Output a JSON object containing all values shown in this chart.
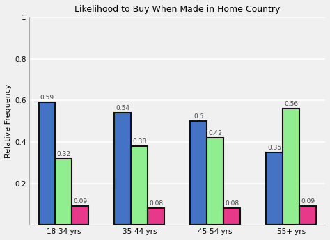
{
  "title": "Likelihood to Buy When Made in Home Country",
  "ylabel": "Relative Frequency",
  "categories": [
    "18-34 yrs",
    "35-44 yrs",
    "45-54 yrs",
    "55+ yrs"
  ],
  "series": {
    "blue": [
      0.59,
      0.54,
      0.5,
      0.35
    ],
    "green": [
      0.32,
      0.38,
      0.42,
      0.56
    ],
    "pink": [
      0.09,
      0.08,
      0.08,
      0.09
    ]
  },
  "bar_colors": [
    "#4472C4",
    "#90EE90",
    "#E8388A"
  ],
  "ylim": [
    0,
    1.0
  ],
  "yticks": [
    0.0,
    0.2,
    0.4,
    0.6,
    0.8,
    1.0
  ],
  "yticklabels": [
    "",
    "0.2",
    "0.4",
    "0.6",
    "0.8",
    "1"
  ],
  "bar_width": 0.22,
  "label_fontsize": 6.5,
  "title_fontsize": 9,
  "ylabel_fontsize": 8,
  "tick_fontsize": 7.5,
  "background_color": "#F0F0F0",
  "plot_bg_color": "#F0F0F0",
  "grid_color": "#FFFFFF",
  "edgecolor": "#111111",
  "edge_linewidth": 1.5
}
